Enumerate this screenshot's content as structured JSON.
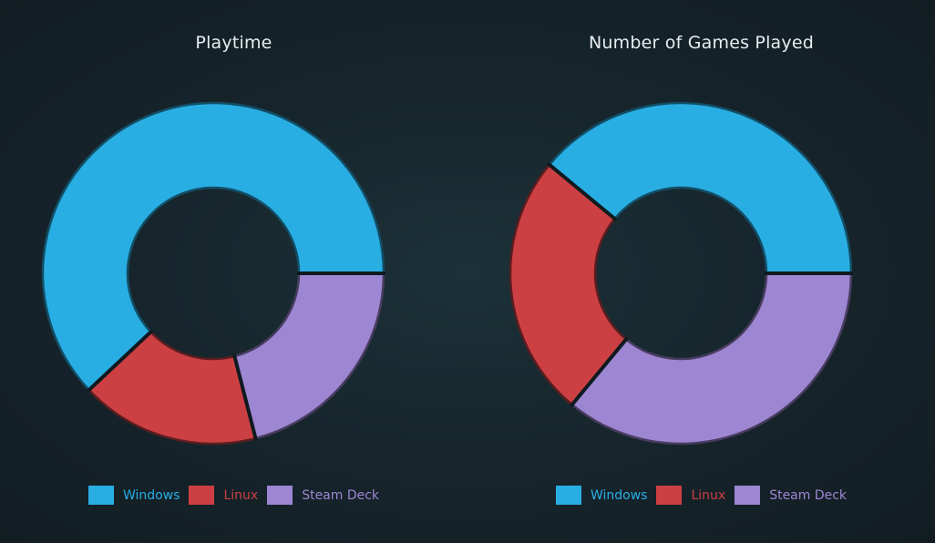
{
  "chart_data": [
    {
      "type": "pie",
      "variant": "donut",
      "title": "Playtime",
      "categories": [
        "Windows",
        "Linux",
        "Steam Deck"
      ],
      "values": [
        62,
        17,
        21
      ],
      "colors": [
        "#29aee3",
        "#cc4044",
        "#9d86d2"
      ],
      "legend": "bottom"
    },
    {
      "type": "pie",
      "variant": "donut",
      "title": "Number of Games Played",
      "categories": [
        "Windows",
        "Linux",
        "Steam Deck"
      ],
      "values": [
        39,
        25,
        36
      ],
      "colors": [
        "#29aee3",
        "#cc4044",
        "#9d86d2"
      ],
      "legend": "bottom"
    }
  ]
}
